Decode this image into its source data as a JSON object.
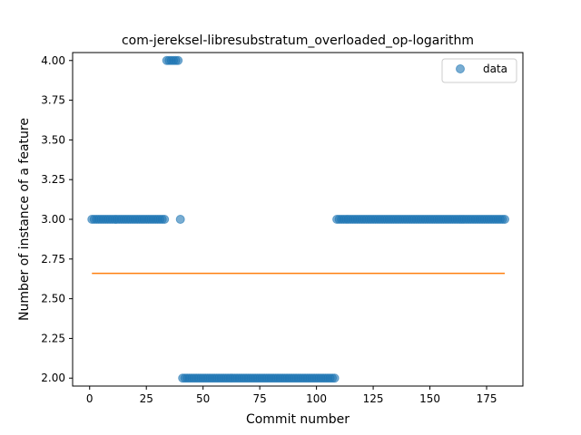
{
  "chart_data": {
    "type": "scatter",
    "title": "com-jereksel-libresubstratum_overloaded_op-logarithm",
    "xlabel": "Commit number",
    "ylabel": "Number of instance of a feature",
    "xlim": [
      -7.5,
      191
    ],
    "ylim": [
      1.95,
      4.05
    ],
    "xticks": [
      0,
      25,
      50,
      75,
      100,
      125,
      150,
      175
    ],
    "yticks": [
      "2.00",
      "2.25",
      "2.50",
      "2.75",
      "3.00",
      "3.25",
      "3.50",
      "3.75",
      "4.00"
    ],
    "legend": {
      "position": "top-right",
      "entries": [
        "data"
      ]
    },
    "colors": {
      "scatter": "#1f77b4",
      "line": "#ff7f0e"
    },
    "series": [
      {
        "name": "data",
        "style": "scatter",
        "segments": [
          {
            "x_start": 1,
            "x_end": 33,
            "y": 3
          },
          {
            "x_start": 34,
            "x_end": 39,
            "y": 4
          },
          {
            "x_start": 40,
            "x_end": 40,
            "y": 3
          },
          {
            "x_start": 41,
            "x_end": 108,
            "y": 2
          },
          {
            "x_start": 109,
            "x_end": 183,
            "y": 3
          }
        ]
      },
      {
        "style": "line",
        "x": [
          1,
          183
        ],
        "y": [
          2.66,
          2.66
        ]
      }
    ]
  }
}
